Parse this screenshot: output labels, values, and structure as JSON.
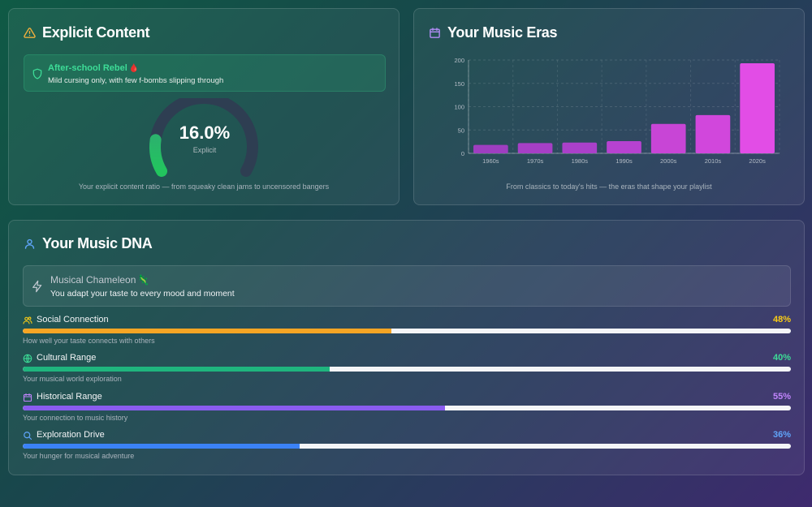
{
  "explicit": {
    "title": "Explicit Content",
    "rating_name": "After-school Rebel",
    "rating_emoji": "🩸",
    "rating_desc": "Mild cursing only, with few f-bombs slipping through",
    "value_text": "16.0%",
    "value": 16.0,
    "value_label": "Explicit",
    "caption": "Your explicit content ratio — from squeaky clean jams to uncensored bangers",
    "icon": "warning-triangle-icon"
  },
  "eras": {
    "title": "Your Music Eras",
    "icon": "calendar-icon",
    "caption": "From classics to today's hits — the eras that shape your playlist"
  },
  "chart_data": {
    "type": "bar",
    "categories": [
      "1960s",
      "1970s",
      "1980s",
      "1990s",
      "2000s",
      "2010s",
      "2020s"
    ],
    "values": [
      18,
      22,
      23,
      26,
      63,
      82,
      193
    ],
    "yticks": [
      0,
      50,
      100,
      150,
      200
    ],
    "ylim": [
      0,
      200
    ],
    "grid": true,
    "colors": [
      "#9e3ec0",
      "#a63fc6",
      "#aa40ca",
      "#b642d0",
      "#c845d6",
      "#d147dc",
      "#e24de6"
    ]
  },
  "dna": {
    "title": "Your Music DNA",
    "icon": "user-icon",
    "persona_name": "Musical Chameleon",
    "persona_emoji": "🦎",
    "persona_desc": "You adapt your taste to every mood and moment",
    "metrics": [
      {
        "label": "Social Connection",
        "pct_text": "48%",
        "value": 0.48,
        "desc": "How well your taste connects with others",
        "color": "#f5a524",
        "pct_color": "#facc15",
        "icon": "users-icon"
      },
      {
        "label": "Cultural Range",
        "pct_text": "40%",
        "value": 0.4,
        "desc": "Your musical world exploration",
        "color": "#1fb57e",
        "pct_color": "#3ddc97",
        "icon": "globe-icon"
      },
      {
        "label": "Historical Range",
        "pct_text": "55%",
        "value": 0.55,
        "desc": "Your connection to music history",
        "color": "#8a5cf0",
        "pct_color": "#c084fc",
        "icon": "calendar-icon"
      },
      {
        "label": "Exploration Drive",
        "pct_text": "36%",
        "value": 0.36,
        "desc": "Your hunger for musical adventure",
        "color": "#3b82f6",
        "pct_color": "#60a5fa",
        "icon": "search-icon"
      }
    ]
  }
}
